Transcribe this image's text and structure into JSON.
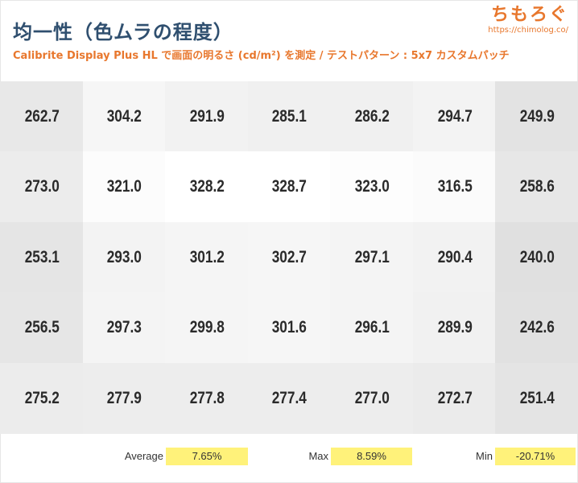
{
  "header": {
    "title": "均一性（色ムラの程度）",
    "subtitle": "Calibrite Display Plus HL で画面の明るさ (cd/m²) を測定 / テストパターン : 5x7 カスタムパッチ"
  },
  "logo": {
    "name": "ちもろぐ",
    "url": "https://chimolog.co/"
  },
  "chart_data": {
    "type": "heatmap",
    "rows": 5,
    "columns": 7,
    "unit": "cd/m²",
    "values": [
      [
        "262.7",
        "304.2",
        "291.9",
        "285.1",
        "286.2",
        "294.7",
        "249.9"
      ],
      [
        "273.0",
        "321.0",
        "328.2",
        "328.7",
        "323.0",
        "316.5",
        "258.6"
      ],
      [
        "253.1",
        "293.0",
        "301.2",
        "302.7",
        "297.1",
        "290.4",
        "240.0"
      ],
      [
        "256.5",
        "297.3",
        "299.8",
        "301.6",
        "296.1",
        "289.9",
        "242.6"
      ],
      [
        "275.2",
        "277.9",
        "277.8",
        "277.4",
        "277.0",
        "272.7",
        "251.4"
      ]
    ],
    "color_scale": {
      "low": "#e0e0e0",
      "high": "#ffffff"
    }
  },
  "stats": [
    {
      "label": "Average",
      "value": "7.65%"
    },
    {
      "label": "Max",
      "value": "8.59%"
    },
    {
      "label": "Min",
      "value": "-20.71%"
    }
  ],
  "colors": {
    "title": "#2f4f6f",
    "accent": "#e8772d",
    "highlight": "#fff27a"
  }
}
